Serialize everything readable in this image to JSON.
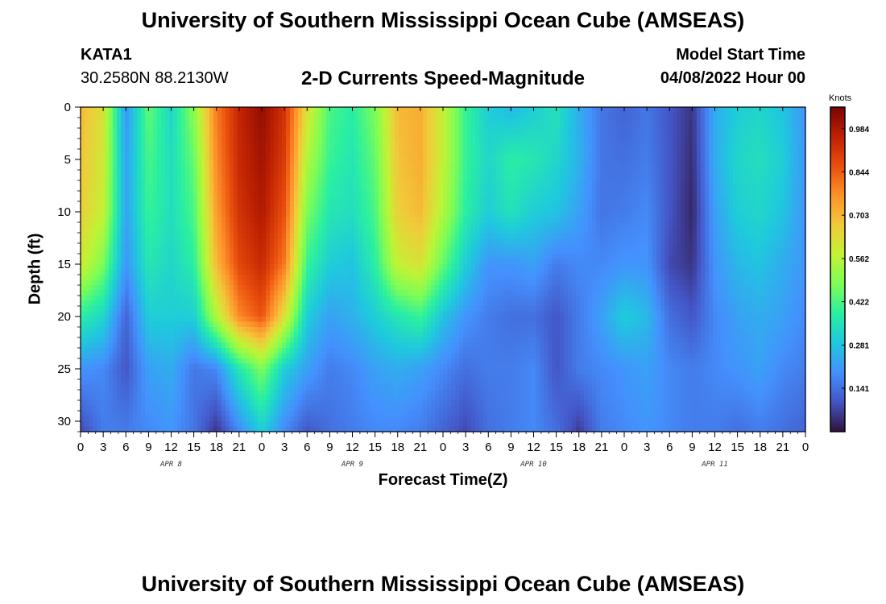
{
  "header": {
    "title": "University of Southern Mississippi Ocean Cube (AMSEAS)",
    "station": "KATA1",
    "coords": "30.2580N  88.2130W",
    "subtitle": "2-D Currents Speed-Magnitude",
    "model_start_label": "Model Start Time",
    "model_start_value": "04/08/2022 Hour 00"
  },
  "footer": {
    "title": "University of Southern Mississippi Ocean Cube (AMSEAS)"
  },
  "chart_data": {
    "type": "heatmap",
    "title": "2-D Currents Speed-Magnitude",
    "xlabel": "Forecast Time(Z)",
    "ylabel": "Depth (ft)",
    "units": "Knots",
    "xlim": [
      0,
      96
    ],
    "ylim": [
      31,
      0
    ],
    "x_ticks": [
      0,
      3,
      6,
      9,
      12,
      15,
      18,
      21,
      24,
      27,
      30,
      33,
      36,
      39,
      42,
      45,
      48,
      51,
      54,
      57,
      60,
      63,
      66,
      69,
      72,
      75,
      78,
      81,
      84,
      87,
      90,
      93,
      96
    ],
    "x_tick_labels": [
      "0",
      "3",
      "6",
      "9",
      "12",
      "15",
      "18",
      "21",
      "0",
      "3",
      "6",
      "9",
      "12",
      "15",
      "18",
      "21",
      "0",
      "3",
      "6",
      "9",
      "12",
      "15",
      "18",
      "21",
      "0",
      "3",
      "6",
      "9",
      "12",
      "15",
      "18",
      "21",
      "0"
    ],
    "day_labels": [
      {
        "label": "APR 8",
        "hour": 12
      },
      {
        "label": "APR 9",
        "hour": 36
      },
      {
        "label": "APR 10",
        "hour": 60
      },
      {
        "label": "APR 11",
        "hour": 84
      }
    ],
    "y_ticks": [
      0,
      5,
      10,
      15,
      20,
      25,
      30
    ],
    "y_tick_labels": [
      "0",
      "5",
      "10",
      "15",
      "20",
      "25",
      "30"
    ],
    "colorbar": {
      "min": 0.0,
      "max": 1.054,
      "tick_values": [
        0.141,
        0.281,
        0.422,
        0.562,
        0.703,
        0.844,
        0.984
      ],
      "tick_labels": [
        "0.141",
        "0.281",
        "0.422",
        "0.562",
        "0.703",
        "0.844",
        "0.984"
      ],
      "colors": [
        "#30123b",
        "#4454c4",
        "#4490fe",
        "#1fc8de",
        "#29efa2",
        "#7dfd56",
        "#c1f334",
        "#f1ca3a",
        "#fe922a",
        "#ea4f0d",
        "#be2102",
        "#7a0403"
      ]
    },
    "depths_ft": [
      0,
      5,
      10,
      15,
      20,
      25,
      31
    ],
    "hours": [
      0,
      3,
      6,
      9,
      12,
      15,
      18,
      21,
      24,
      27,
      30,
      33,
      36,
      39,
      42,
      45,
      48,
      51,
      54,
      57,
      60,
      63,
      66,
      69,
      72,
      75,
      78,
      81,
      84,
      87,
      90,
      93,
      96
    ],
    "speed_knots": [
      [
        0.7,
        0.62,
        0.2,
        0.45,
        0.32,
        0.5,
        0.8,
        0.95,
        1.02,
        0.92,
        0.62,
        0.42,
        0.38,
        0.48,
        0.7,
        0.72,
        0.58,
        0.4,
        0.3,
        0.26,
        0.3,
        0.35,
        0.24,
        0.15,
        0.12,
        0.15,
        0.1,
        0.05,
        0.24,
        0.3,
        0.32,
        0.28,
        0.2
      ],
      [
        0.68,
        0.6,
        0.22,
        0.42,
        0.34,
        0.45,
        0.78,
        0.94,
        1.0,
        0.9,
        0.55,
        0.4,
        0.36,
        0.45,
        0.68,
        0.72,
        0.58,
        0.4,
        0.32,
        0.38,
        0.36,
        0.32,
        0.25,
        0.15,
        0.14,
        0.16,
        0.1,
        0.04,
        0.24,
        0.32,
        0.34,
        0.3,
        0.2
      ],
      [
        0.66,
        0.58,
        0.22,
        0.4,
        0.34,
        0.42,
        0.75,
        0.92,
        0.98,
        0.86,
        0.48,
        0.36,
        0.34,
        0.42,
        0.66,
        0.7,
        0.55,
        0.38,
        0.3,
        0.35,
        0.3,
        0.28,
        0.22,
        0.15,
        0.16,
        0.18,
        0.1,
        0.03,
        0.22,
        0.3,
        0.32,
        0.28,
        0.2
      ],
      [
        0.6,
        0.48,
        0.2,
        0.36,
        0.32,
        0.38,
        0.7,
        0.88,
        0.94,
        0.8,
        0.4,
        0.3,
        0.28,
        0.38,
        0.58,
        0.62,
        0.45,
        0.3,
        0.2,
        0.2,
        0.22,
        0.16,
        0.18,
        0.18,
        0.2,
        0.2,
        0.08,
        0.05,
        0.2,
        0.26,
        0.28,
        0.24,
        0.2
      ],
      [
        0.38,
        0.32,
        0.12,
        0.3,
        0.3,
        0.3,
        0.55,
        0.78,
        0.86,
        0.62,
        0.3,
        0.22,
        0.25,
        0.3,
        0.36,
        0.4,
        0.28,
        0.2,
        0.16,
        0.14,
        0.14,
        0.1,
        0.16,
        0.22,
        0.3,
        0.26,
        0.14,
        0.1,
        0.18,
        0.22,
        0.24,
        0.22,
        0.18
      ],
      [
        0.2,
        0.18,
        0.1,
        0.22,
        0.24,
        0.15,
        0.18,
        0.36,
        0.48,
        0.3,
        0.22,
        0.16,
        0.18,
        0.22,
        0.24,
        0.22,
        0.18,
        0.14,
        0.16,
        0.16,
        0.18,
        0.1,
        0.16,
        0.18,
        0.2,
        0.22,
        0.18,
        0.16,
        0.18,
        0.2,
        0.22,
        0.18,
        0.16
      ],
      [
        0.08,
        0.16,
        0.16,
        0.18,
        0.2,
        0.15,
        0.05,
        0.18,
        0.3,
        0.18,
        0.1,
        0.14,
        0.16,
        0.18,
        0.18,
        0.16,
        0.12,
        0.08,
        0.14,
        0.16,
        0.18,
        0.14,
        0.06,
        0.16,
        0.18,
        0.2,
        0.18,
        0.16,
        0.16,
        0.14,
        0.16,
        0.14,
        0.12
      ]
    ]
  }
}
